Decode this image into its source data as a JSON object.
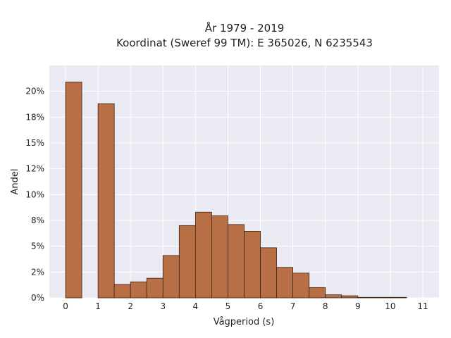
{
  "chart_data": {
    "type": "bar",
    "title": "År 1979 - 2019",
    "subtitle": "Koordinat (Sweref 99 TM): E 365026, N 6235543",
    "xlabel": "Vågperiod (s)",
    "ylabel": "Andel",
    "x_ticks": [
      "0",
      "1",
      "2",
      "3",
      "4",
      "5",
      "6",
      "7",
      "8",
      "9",
      "10",
      "11"
    ],
    "y_ticks": [
      "0%",
      "2%",
      "5%",
      "8%",
      "10%",
      "12%",
      "15%",
      "18%",
      "20%"
    ],
    "xlim": [
      -0.5,
      11.5
    ],
    "ylim": [
      0,
      22.5
    ],
    "bin_width": 0.5,
    "bins": [
      {
        "x0": 0.0,
        "value": 20.9
      },
      {
        "x0": 0.5,
        "value": 0
      },
      {
        "x0": 1.0,
        "value": 18.8
      },
      {
        "x0": 1.5,
        "value": 1.3
      },
      {
        "x0": 2.0,
        "value": 1.55
      },
      {
        "x0": 2.5,
        "value": 1.9
      },
      {
        "x0": 3.0,
        "value": 4.1
      },
      {
        "x0": 3.5,
        "value": 7.0
      },
      {
        "x0": 4.0,
        "value": 8.3
      },
      {
        "x0": 4.5,
        "value": 7.95
      },
      {
        "x0": 5.0,
        "value": 7.1
      },
      {
        "x0": 5.5,
        "value": 6.45
      },
      {
        "x0": 6.0,
        "value": 4.85
      },
      {
        "x0": 6.5,
        "value": 2.95
      },
      {
        "x0": 7.0,
        "value": 2.4
      },
      {
        "x0": 7.5,
        "value": 1.0
      },
      {
        "x0": 8.0,
        "value": 0.3
      },
      {
        "x0": 8.5,
        "value": 0.2
      },
      {
        "x0": 9.0,
        "value": 0.05
      },
      {
        "x0": 9.5,
        "value": 0.05
      },
      {
        "x0": 10.0,
        "value": 0.05
      }
    ],
    "grid": true,
    "colors": {
      "bar_fill": "#b86f46",
      "bar_stroke": "#3d2516",
      "plot_bg": "#eaeaf2",
      "grid": "#ffffff"
    }
  }
}
